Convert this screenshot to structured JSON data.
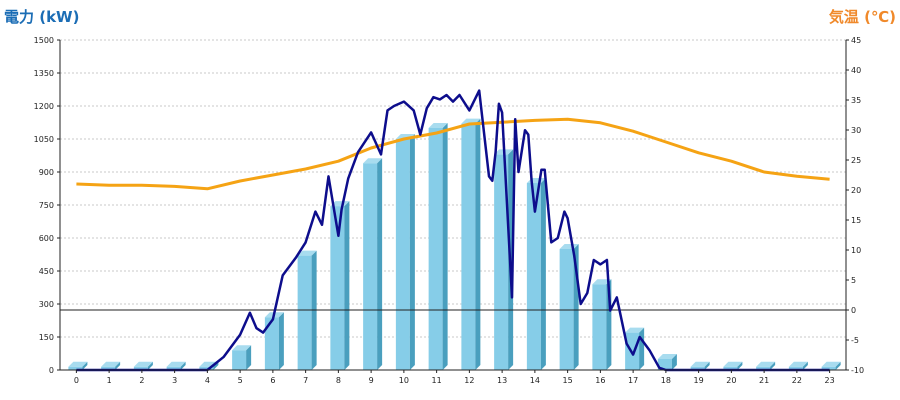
{
  "chart_data": {
    "type": "bar",
    "left_axis_title": "電力 (kW)",
    "right_axis_title": "気温 (℃)",
    "categories": [
      "0",
      "1",
      "2",
      "3",
      "4",
      "5",
      "6",
      "7",
      "8",
      "9",
      "10",
      "11",
      "12",
      "13",
      "14",
      "15",
      "16",
      "17",
      "18",
      "19",
      "20",
      "21",
      "22",
      "23"
    ],
    "left_ticks": [
      "0",
      "150",
      "300",
      "450",
      "600",
      "750",
      "900",
      "1050",
      "1200",
      "1350",
      "1500"
    ],
    "right_ticks": [
      "-10",
      "-5",
      "0",
      "5",
      "10",
      "15",
      "20",
      "25",
      "30",
      "35",
      "40",
      "45"
    ],
    "ylim_left": [
      0,
      1500
    ],
    "ylim_right": [
      -10,
      45
    ],
    "grid": true,
    "bars": {
      "name": "",
      "values": [
        15,
        15,
        15,
        15,
        15,
        90,
        240,
        520,
        745,
        940,
        1050,
        1100,
        1120,
        980,
        850,
        550,
        390,
        170,
        50,
        15,
        15,
        15,
        15,
        15
      ]
    },
    "power_line": {
      "name": "",
      "x": [
        0,
        1,
        2,
        3,
        4,
        4.5,
        5,
        5.3,
        5.5,
        5.7,
        5.9,
        6,
        6.3,
        6.7,
        7,
        7.3,
        7.5,
        7.7,
        8,
        8.1,
        8.3,
        8.6,
        9,
        9.3,
        9.5,
        9.7,
        10,
        10.3,
        10.5,
        10.7,
        10.9,
        11.1,
        11.3,
        11.5,
        11.7,
        12,
        12.3,
        12.6,
        12.7,
        12.8,
        12.9,
        13,
        13.3,
        13.4,
        13.5,
        13.7,
        13.8,
        13.9,
        14,
        14.2,
        14.3,
        14.5,
        14.7,
        14.9,
        15,
        15.2,
        15.4,
        15.6,
        15.8,
        16,
        16.2,
        16.3,
        16.5,
        16.8,
        17,
        17.2,
        17.5,
        17.8,
        18,
        18.3,
        19,
        20,
        21,
        22,
        23
      ],
      "values": [
        0,
        0,
        0,
        0,
        0,
        60,
        160,
        260,
        190,
        170,
        210,
        230,
        430,
        510,
        580,
        720,
        660,
        880,
        610,
        730,
        870,
        990,
        1080,
        980,
        1180,
        1200,
        1220,
        1180,
        1070,
        1190,
        1240,
        1230,
        1250,
        1220,
        1250,
        1180,
        1270,
        880,
        860,
        990,
        1210,
        1170,
        330,
        1140,
        900,
        1090,
        1070,
        860,
        720,
        910,
        910,
        580,
        600,
        720,
        690,
        520,
        300,
        350,
        500,
        480,
        500,
        270,
        330,
        120,
        70,
        150,
        90,
        10,
        0,
        0,
        0,
        0,
        0,
        0,
        0
      ]
    },
    "temp_line": {
      "name": "",
      "x": [
        0,
        1,
        2,
        3,
        4,
        5,
        6,
        7,
        8,
        9,
        10,
        11,
        12,
        13,
        14,
        15,
        16,
        17,
        18,
        19,
        20,
        21,
        22,
        23
      ],
      "values": [
        21,
        20.8,
        20.8,
        20.6,
        20.2,
        21.5,
        22.5,
        23.5,
        24.8,
        27,
        28.5,
        29.5,
        31,
        31.3,
        31.6,
        31.8,
        31.2,
        29.8,
        28,
        26.2,
        24.8,
        23,
        22.3,
        21.8
      ]
    },
    "reference_line": {
      "axis": "right",
      "value": 0
    },
    "colors": {
      "bar_face": "#86cde8",
      "bar_side": "#4a9fbe",
      "bar_top": "#a8dcef",
      "power_line": "#0d0d8c",
      "temp_line": "#f5a314",
      "left_title": "#1b6db5",
      "right_title": "#f0892a",
      "grid": "#c8c8c8"
    },
    "legend": "none"
  }
}
